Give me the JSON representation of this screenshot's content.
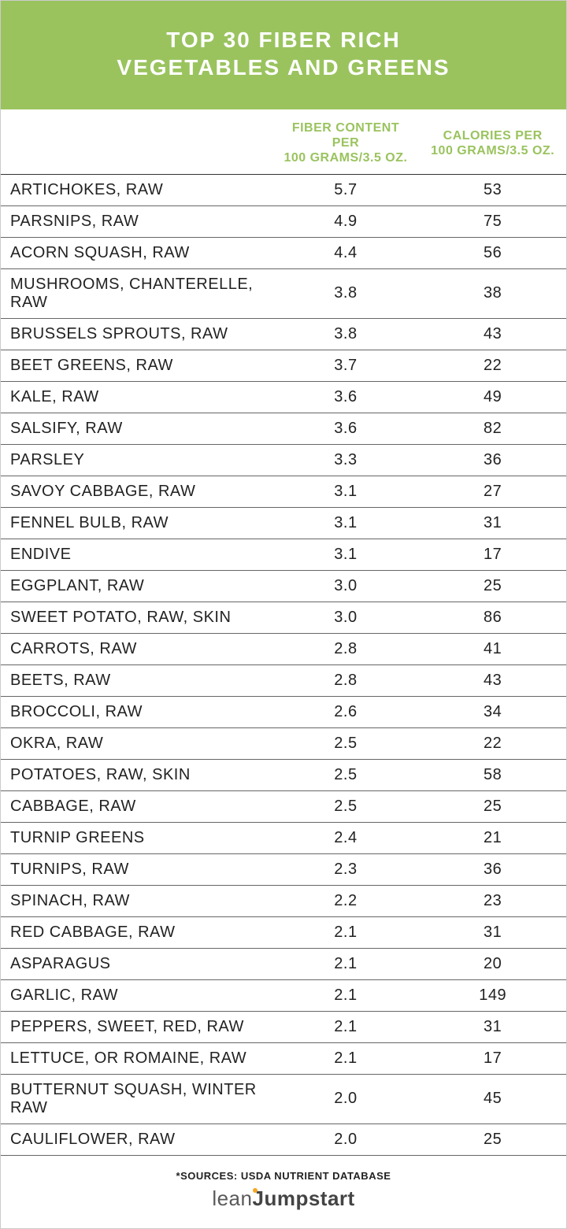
{
  "header": {
    "title_line1": "TOP 30 FIBER RICH",
    "title_line2": "VEGETABLES AND GREENS",
    "background_color": "#9ac35e",
    "text_color": "#ffffff",
    "title_fontsize": 28
  },
  "table": {
    "columns": [
      {
        "key": "name",
        "label_l1": "",
        "label_l2": "",
        "align": "left",
        "width_pct": 48
      },
      {
        "key": "fiber",
        "label_l1": "FIBER CONTENT PER",
        "label_l2": "100 GRAMS/3.5 OZ.",
        "align": "center",
        "width_pct": 26
      },
      {
        "key": "calories",
        "label_l1": "CALORIES PER",
        "label_l2": "100 GRAMS/3.5 OZ.",
        "align": "center",
        "width_pct": 26
      }
    ],
    "header_color": "#9ac35e",
    "header_fontsize": 16,
    "row_fontsize": 20,
    "row_text_color": "#222222",
    "border_color": "#666666",
    "rows": [
      {
        "name": "Artichokes, raw",
        "fiber": "5.7",
        "calories": "53"
      },
      {
        "name": "Parsnips, raw",
        "fiber": "4.9",
        "calories": "75"
      },
      {
        "name": "Acorn squash, raw",
        "fiber": "4.4",
        "calories": "56"
      },
      {
        "name": "Mushrooms, chanterelle, raw",
        "fiber": "3.8",
        "calories": "38"
      },
      {
        "name": "Brussels sprouts, raw",
        "fiber": "3.8",
        "calories": "43"
      },
      {
        "name": "Beet greens, raw",
        "fiber": "3.7",
        "calories": "22"
      },
      {
        "name": "Kale, raw",
        "fiber": "3.6",
        "calories": "49"
      },
      {
        "name": "Salsify, raw",
        "fiber": "3.6",
        "calories": "82"
      },
      {
        "name": "Parsley",
        "fiber": "3.3",
        "calories": "36"
      },
      {
        "name": "Savoy cabbage, raw",
        "fiber": "3.1",
        "calories": "27"
      },
      {
        "name": "Fennel bulb, raw",
        "fiber": "3.1",
        "calories": "31"
      },
      {
        "name": "Endive",
        "fiber": "3.1",
        "calories": "17"
      },
      {
        "name": "Eggplant, raw",
        "fiber": "3.0",
        "calories": "25"
      },
      {
        "name": "Sweet potato, raw, skin",
        "fiber": "3.0",
        "calories": "86"
      },
      {
        "name": "Carrots, raw",
        "fiber": "2.8",
        "calories": "41"
      },
      {
        "name": "Beets, raw",
        "fiber": "2.8",
        "calories": "43"
      },
      {
        "name": "Broccoli, raw",
        "fiber": "2.6",
        "calories": "34"
      },
      {
        "name": "Okra, raw",
        "fiber": "2.5",
        "calories": "22"
      },
      {
        "name": "Potatoes, raw, skin",
        "fiber": "2.5",
        "calories": "58"
      },
      {
        "name": "Cabbage, raw",
        "fiber": "2.5",
        "calories": "25"
      },
      {
        "name": "Turnip greens",
        "fiber": "2.4",
        "calories": "21"
      },
      {
        "name": "Turnips, raw",
        "fiber": "2.3",
        "calories": "36"
      },
      {
        "name": "Spinach, raw",
        "fiber": "2.2",
        "calories": "23"
      },
      {
        "name": "Red cabbage, raw",
        "fiber": "2.1",
        "calories": "31"
      },
      {
        "name": "Asparagus",
        "fiber": "2.1",
        "calories": "20"
      },
      {
        "name": "Garlic, raw",
        "fiber": "2.1",
        "calories": "149"
      },
      {
        "name": "Peppers, sweet, red, raw",
        "fiber": "2.1",
        "calories": "31"
      },
      {
        "name": "Lettuce,  or romaine,  raw",
        "fiber": "2.1",
        "calories": "17"
      },
      {
        "name": "Butternut squash, winter raw",
        "fiber": "2.0",
        "calories": "45"
      },
      {
        "name": "Cauliflower, raw",
        "fiber": "2.0",
        "calories": "25"
      }
    ]
  },
  "footer": {
    "source_note": "*SOURCES: USDA NUTRIENT DATABASE",
    "logo_part1": "lean",
    "logo_part2": "umpstart",
    "logo_dot_color": "#f5a623"
  }
}
